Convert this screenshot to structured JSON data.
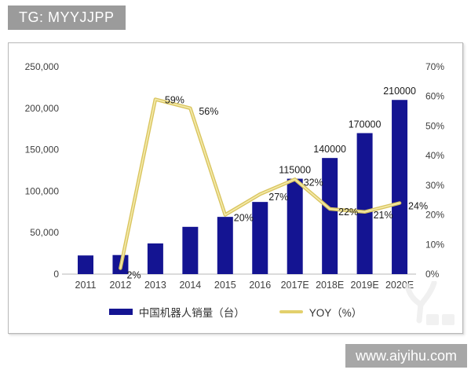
{
  "badge": {
    "text": "TG: MYYJJPP"
  },
  "watermark": {
    "url": "www.aiyihu.com"
  },
  "chart_data": {
    "type": "bar",
    "title": "",
    "categories": [
      "2011",
      "2012",
      "2013",
      "2014",
      "2015",
      "2016",
      "2017E",
      "2018E",
      "2019E",
      "2020E"
    ],
    "series": [
      {
        "name": "中国机器人销量（台）",
        "type": "bar",
        "axis": "left",
        "color": "#141492",
        "values": [
          22500,
          23000,
          37000,
          57000,
          69000,
          87000,
          115000,
          140000,
          170000,
          210000
        ],
        "data_labels": [
          "",
          "",
          "",
          "",
          "",
          "",
          "115000",
          "140000",
          "170000",
          "210000"
        ]
      },
      {
        "name": "YOY（%）",
        "type": "line",
        "axis": "right",
        "color": "#e3d06c",
        "values": [
          null,
          2,
          59,
          56,
          20,
          27,
          32,
          22,
          21,
          24
        ],
        "data_labels": [
          "",
          "2%",
          "59%",
          "56%",
          "20%",
          "27%",
          "32%",
          "22%",
          "21%",
          "24%"
        ]
      }
    ],
    "left_axis": {
      "min": 0,
      "max": 250000,
      "tick_step": 50000,
      "tick_labels": [
        "0",
        "50,000",
        "100,000",
        "150,000",
        "200,000",
        "250,000"
      ]
    },
    "right_axis": {
      "min": 0,
      "max": 70,
      "tick_step": 10,
      "tick_labels": [
        "0%",
        "10%",
        "20%",
        "30%",
        "40%",
        "50%",
        "60%",
        "70%"
      ]
    },
    "grid": false,
    "legend_position": "bottom"
  }
}
